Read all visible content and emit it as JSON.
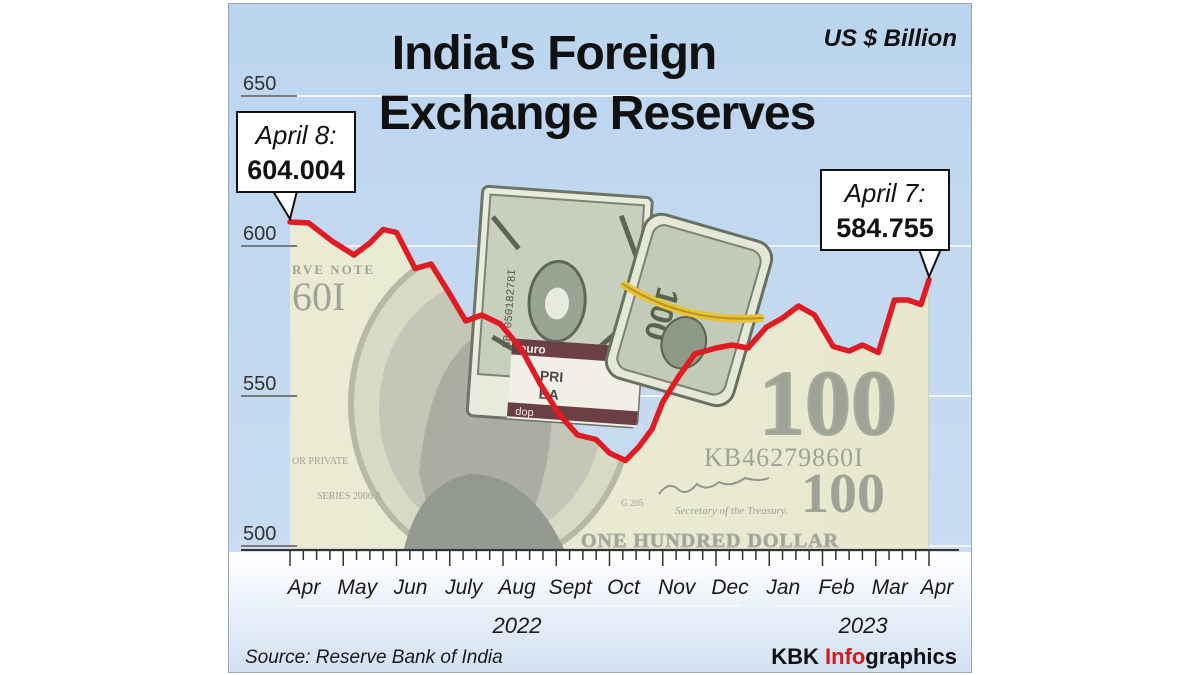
{
  "chart_data": {
    "type": "line",
    "title_lines": [
      "India's Foreign",
      "Exchange Reserves"
    ],
    "unit": "US $ Billion",
    "ylim": [
      500,
      650
    ],
    "yticks": [
      650,
      600,
      550,
      500
    ],
    "months": [
      "Apr",
      "May",
      "Jun",
      "July",
      "Aug",
      "Sept",
      "Oct",
      "Nov",
      "Dec",
      "Jan",
      "Feb",
      "Mar",
      "Apr"
    ],
    "years": [
      {
        "label": "2022",
        "from": 0,
        "to": 8
      },
      {
        "label": "2023",
        "from": 9,
        "to": 12
      }
    ],
    "series": [
      {
        "color": "#e01b22",
        "points": [
          [
            0.0,
            604.004
          ],
          [
            0.35,
            603.7
          ],
          [
            0.8,
            597.5
          ],
          [
            1.2,
            593.0
          ],
          [
            1.5,
            597.0
          ],
          [
            1.75,
            601.5
          ],
          [
            2.0,
            600.5
          ],
          [
            2.35,
            588.5
          ],
          [
            2.65,
            590.0
          ],
          [
            3.0,
            580.0
          ],
          [
            3.3,
            571.0
          ],
          [
            3.6,
            573.0
          ],
          [
            3.95,
            570.0
          ],
          [
            4.35,
            561.5
          ],
          [
            4.7,
            550.0
          ],
          [
            5.05,
            540.0
          ],
          [
            5.4,
            533.0
          ],
          [
            5.75,
            531.5
          ],
          [
            6.0,
            527.0
          ],
          [
            6.3,
            524.5
          ],
          [
            6.55,
            529.0
          ],
          [
            6.8,
            535.0
          ],
          [
            7.0,
            544.0
          ],
          [
            7.3,
            552.5
          ],
          [
            7.6,
            560.0
          ],
          [
            8.0,
            562.0
          ],
          [
            8.3,
            563.0
          ],
          [
            8.6,
            562.0
          ],
          [
            8.95,
            569.0
          ],
          [
            9.25,
            572.0
          ],
          [
            9.55,
            576.0
          ],
          [
            9.85,
            573.0
          ],
          [
            10.2,
            562.5
          ],
          [
            10.5,
            561.0
          ],
          [
            10.75,
            563.0
          ],
          [
            11.05,
            560.5
          ],
          [
            11.35,
            578.0
          ],
          [
            11.6,
            578.0
          ],
          [
            11.85,
            576.5
          ],
          [
            12.0,
            584.755
          ]
        ]
      }
    ],
    "annotations": [
      {
        "label": "April 8:",
        "value": "604.004"
      },
      {
        "label": "April 7:",
        "value": "584.755"
      }
    ],
    "grid": true,
    "background_image": "hundred-dollar-bill-and-money-bundles"
  },
  "bill_text": {
    "serial": "KB46279860I",
    "denomination": "100",
    "banner": "ONE HUNDRED DOLLAR",
    "treasury": "Secretary of the Treasury.",
    "series": "SERIES 2006 A",
    "left_serial": "60I",
    "left_top": "RVE NOTE",
    "left_mid": "OR PRIVATE",
    "sheet_code": "G 205",
    "bundle_serial": "HB 05018278I",
    "wrapper_text": [
      "euro",
      "PRI",
      "BA",
      "dop"
    ]
  },
  "source": "Source: Reserve Bank of India",
  "credit": {
    "prefix": "KBK ",
    "highlight": "Info",
    "suffix": "graphics"
  }
}
